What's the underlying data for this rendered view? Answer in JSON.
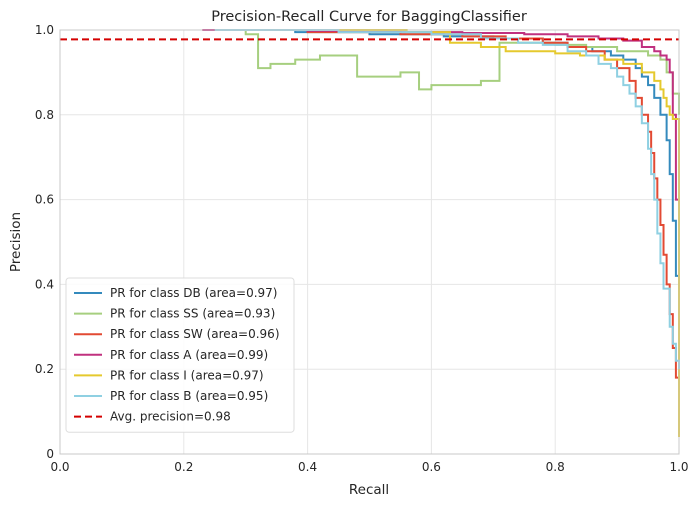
{
  "chart_data": {
    "type": "line",
    "title": "Precision-Recall Curve for BaggingClassifier",
    "xlabel": "Recall",
    "ylabel": "Precision",
    "xlim": [
      0.0,
      1.0
    ],
    "ylim": [
      0.0,
      1.0
    ],
    "x_ticks": [
      "0.0",
      "0.2",
      "0.4",
      "0.6",
      "0.8",
      "1.0"
    ],
    "y_ticks": [
      "0",
      "0.2",
      "0.4",
      "0.6",
      "0.8",
      "1.0"
    ],
    "grid": true,
    "legend_position": "lower-left",
    "series": [
      {
        "name": "PR for class DB (area=0.97)",
        "color": "#348abd",
        "x": [
          0.28,
          0.38,
          0.5,
          0.62,
          0.7,
          0.78,
          0.82,
          0.86,
          0.89,
          0.91,
          0.93,
          0.94,
          0.95,
          0.96,
          0.97,
          0.98,
          0.985,
          0.99,
          0.995,
          1.0
        ],
        "y": [
          1.0,
          0.995,
          0.99,
          0.985,
          0.98,
          0.97,
          0.96,
          0.95,
          0.94,
          0.93,
          0.91,
          0.89,
          0.87,
          0.84,
          0.8,
          0.74,
          0.66,
          0.55,
          0.42,
          0.3
        ]
      },
      {
        "name": "PR for class SS (area=0.93)",
        "color": "#a6cf7f",
        "x": [
          0.23,
          0.3,
          0.32,
          0.32,
          0.34,
          0.38,
          0.42,
          0.48,
          0.48,
          0.52,
          0.55,
          0.58,
          0.58,
          0.6,
          0.64,
          0.68,
          0.7,
          0.71,
          0.71,
          0.75,
          0.8,
          0.85,
          0.9,
          0.95,
          0.97,
          0.98,
          0.99,
          1.0
        ],
        "y": [
          1.0,
          0.99,
          0.98,
          0.91,
          0.92,
          0.93,
          0.94,
          0.94,
          0.89,
          0.89,
          0.9,
          0.9,
          0.86,
          0.87,
          0.87,
          0.88,
          0.88,
          0.89,
          0.97,
          0.97,
          0.965,
          0.96,
          0.95,
          0.94,
          0.93,
          0.9,
          0.85,
          0.8
        ]
      },
      {
        "name": "PR for class SW (area=0.96)",
        "color": "#e24a33",
        "x": [
          0.25,
          0.4,
          0.55,
          0.65,
          0.72,
          0.78,
          0.82,
          0.85,
          0.88,
          0.9,
          0.92,
          0.93,
          0.94,
          0.95,
          0.955,
          0.96,
          0.965,
          0.97,
          0.975,
          0.98,
          0.985,
          0.99,
          0.995,
          1.0
        ],
        "y": [
          1.0,
          0.995,
          0.99,
          0.985,
          0.98,
          0.97,
          0.96,
          0.95,
          0.93,
          0.91,
          0.88,
          0.84,
          0.8,
          0.76,
          0.71,
          0.65,
          0.6,
          0.54,
          0.47,
          0.4,
          0.33,
          0.25,
          0.18,
          0.09
        ]
      },
      {
        "name": "PR for class A (area=0.99)",
        "color": "#c0317f",
        "x": [
          0.23,
          0.4,
          0.55,
          0.65,
          0.75,
          0.82,
          0.87,
          0.91,
          0.94,
          0.96,
          0.97,
          0.98,
          0.985,
          0.99,
          0.995,
          1.0
        ],
        "y": [
          1.0,
          0.998,
          0.995,
          0.993,
          0.99,
          0.985,
          0.98,
          0.975,
          0.96,
          0.95,
          0.94,
          0.93,
          0.9,
          0.8,
          0.6,
          0.24
        ]
      },
      {
        "name": "PR for class I (area=0.97)",
        "color": "#e5c92e",
        "x": [
          0.45,
          0.56,
          0.63,
          0.63,
          0.66,
          0.68,
          0.7,
          0.72,
          0.72,
          0.76,
          0.8,
          0.84,
          0.88,
          0.91,
          0.94,
          0.96,
          0.97,
          0.975,
          0.98,
          0.985,
          0.99,
          1.0
        ],
        "y": [
          1.0,
          0.995,
          0.99,
          0.97,
          0.97,
          0.96,
          0.96,
          0.96,
          0.95,
          0.95,
          0.945,
          0.94,
          0.93,
          0.92,
          0.9,
          0.88,
          0.86,
          0.84,
          0.82,
          0.8,
          0.79,
          0.04
        ]
      },
      {
        "name": "PR for class B (area=0.95)",
        "color": "#8fd0e2",
        "x": [
          0.25,
          0.45,
          0.6,
          0.68,
          0.74,
          0.78,
          0.82,
          0.85,
          0.87,
          0.89,
          0.9,
          0.91,
          0.92,
          0.93,
          0.94,
          0.95,
          0.955,
          0.96,
          0.965,
          0.97,
          0.975,
          0.98,
          0.985,
          0.99,
          0.995,
          1.0
        ],
        "y": [
          1.0,
          0.995,
          0.99,
          0.98,
          0.97,
          0.965,
          0.95,
          0.94,
          0.92,
          0.91,
          0.89,
          0.87,
          0.85,
          0.82,
          0.78,
          0.72,
          0.66,
          0.6,
          0.52,
          0.45,
          0.39,
          0.39,
          0.3,
          0.26,
          0.22,
          0.2
        ]
      },
      {
        "name": "Avg. precision=0.98",
        "color": "#d40000",
        "dashed": true,
        "x": [
          0.0,
          1.0
        ],
        "y": [
          0.978,
          0.978
        ]
      }
    ]
  }
}
